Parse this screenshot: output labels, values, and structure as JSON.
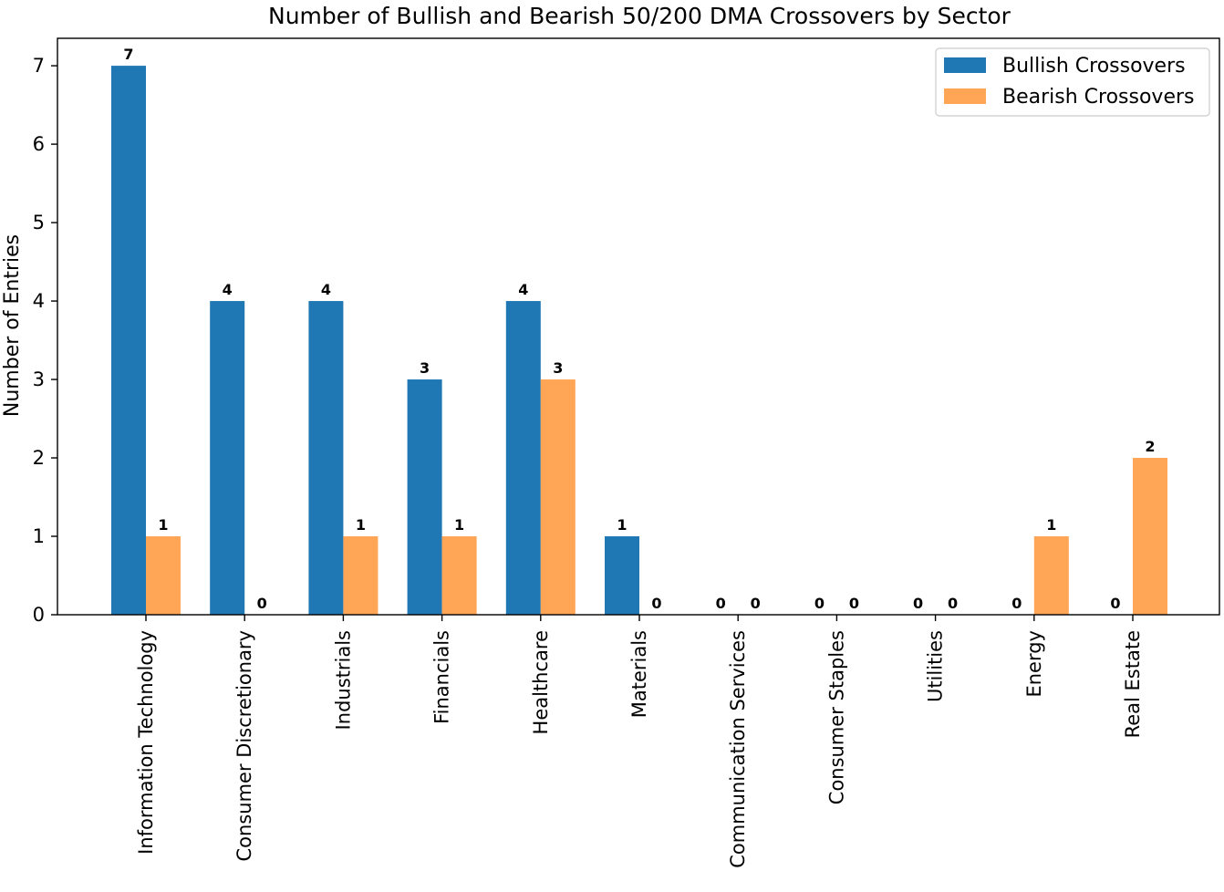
{
  "chart_data": {
    "type": "bar",
    "title": "Number of Bullish and Bearish 50/200 DMA Crossovers by Sector",
    "xlabel": "",
    "ylabel": "Number of Entries",
    "ylim": [
      0,
      7.35
    ],
    "yticks": [
      0,
      1,
      2,
      3,
      4,
      5,
      6,
      7
    ],
    "categories": [
      "Information Technology",
      "Consumer Discretionary",
      "Industrials",
      "Financials",
      "Healthcare",
      "Materials",
      "Communication Services",
      "Consumer Staples",
      "Utilities",
      "Energy",
      "Real Estate"
    ],
    "series": [
      {
        "name": "Bullish Crossovers",
        "color": "#1f77b4",
        "values": [
          7,
          4,
          4,
          3,
          4,
          1,
          0,
          0,
          0,
          0,
          0
        ]
      },
      {
        "name": "Bearish Crossovers",
        "color": "#ffa556",
        "values": [
          1,
          0,
          1,
          1,
          3,
          0,
          0,
          0,
          0,
          1,
          2
        ]
      }
    ],
    "legend_position": "top-right",
    "grid": false
  }
}
